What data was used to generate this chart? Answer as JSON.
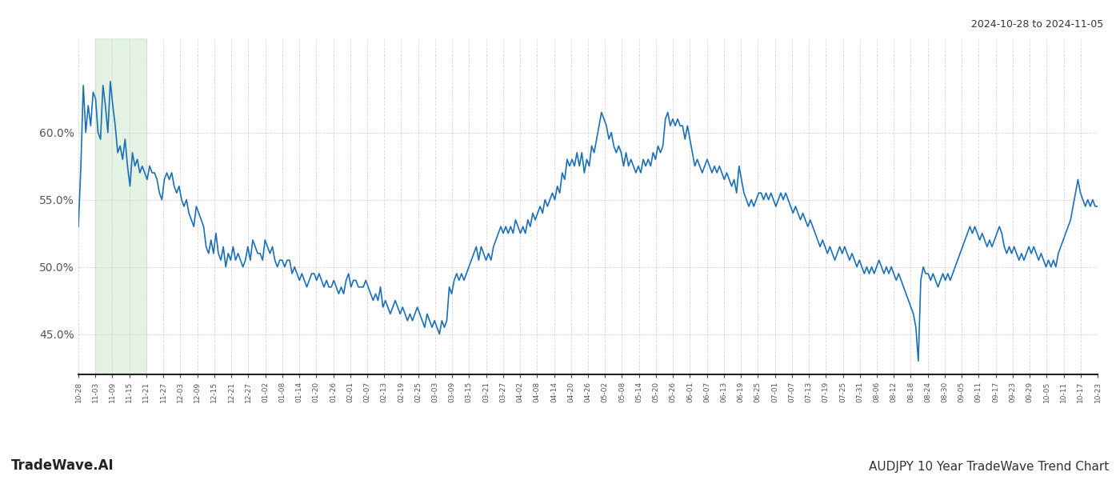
{
  "title_right": "2024-10-28 to 2024-11-05",
  "footer_left": "TradeWave.AI",
  "footer_right": "AUDJPY 10 Year TradeWave Trend Chart",
  "line_color": "#1a6fba",
  "line_width": 1.2,
  "background_color": "#ffffff",
  "grid_color": "#cccccc",
  "highlight_color": "#c8e6c9",
  "highlight_alpha": 0.5,
  "ylim": [
    42.0,
    67.0
  ],
  "yticks": [
    45.0,
    50.0,
    55.0,
    60.0
  ],
  "ytick_labels": [
    "45.0%",
    "50.0%",
    "55.0%",
    "60.0%"
  ],
  "xtick_labels": [
    "10-28",
    "11-03",
    "11-09",
    "11-15",
    "11-21",
    "11-27",
    "12-03",
    "12-09",
    "12-15",
    "12-21",
    "12-27",
    "01-02",
    "01-08",
    "01-14",
    "01-20",
    "01-26",
    "02-01",
    "02-07",
    "02-13",
    "02-19",
    "02-25",
    "03-03",
    "03-09",
    "03-15",
    "03-21",
    "03-27",
    "04-02",
    "04-08",
    "04-14",
    "04-20",
    "04-26",
    "05-02",
    "05-08",
    "05-14",
    "05-20",
    "05-26",
    "06-01",
    "06-07",
    "06-13",
    "06-19",
    "06-25",
    "07-01",
    "07-07",
    "07-13",
    "07-19",
    "07-25",
    "07-31",
    "08-06",
    "08-12",
    "08-18",
    "08-24",
    "08-30",
    "09-05",
    "09-11",
    "09-17",
    "09-23",
    "09-29",
    "10-05",
    "10-11",
    "10-17",
    "10-23"
  ],
  "highlight_xstart": 1,
  "highlight_xend": 4,
  "values": [
    53.0,
    57.5,
    63.5,
    60.0,
    62.0,
    60.5,
    63.0,
    62.5,
    60.0,
    59.5,
    63.5,
    62.0,
    60.0,
    63.8,
    62.0,
    60.5,
    58.5,
    59.0,
    58.0,
    59.5,
    57.5,
    56.0,
    58.5,
    57.5,
    58.0,
    57.0,
    57.5,
    57.0,
    56.5,
    57.5,
    57.0,
    57.0,
    56.5,
    55.5,
    55.0,
    56.5,
    57.0,
    56.5,
    57.0,
    56.0,
    55.5,
    56.0,
    55.0,
    54.5,
    55.0,
    54.0,
    53.5,
    53.0,
    54.5,
    54.0,
    53.5,
    53.0,
    51.5,
    51.0,
    52.0,
    51.0,
    52.5,
    51.0,
    50.5,
    51.5,
    50.0,
    51.0,
    50.5,
    51.5,
    50.5,
    51.0,
    50.5,
    50.0,
    50.5,
    51.5,
    50.5,
    52.0,
    51.5,
    51.0,
    51.0,
    50.5,
    52.0,
    51.5,
    51.0,
    51.5,
    50.5,
    50.0,
    50.5,
    50.5,
    50.0,
    50.5,
    50.5,
    49.5,
    50.0,
    49.5,
    49.0,
    49.5,
    49.0,
    48.5,
    49.0,
    49.5,
    49.5,
    49.0,
    49.5,
    49.0,
    48.5,
    49.0,
    48.5,
    48.5,
    49.0,
    48.5,
    48.0,
    48.5,
    48.0,
    49.0,
    49.5,
    48.5,
    49.0,
    49.0,
    48.5,
    48.5,
    48.5,
    49.0,
    48.5,
    48.0,
    47.5,
    48.0,
    47.5,
    48.5,
    47.0,
    47.5,
    47.0,
    46.5,
    47.0,
    47.5,
    47.0,
    46.5,
    47.0,
    46.5,
    46.0,
    46.5,
    46.0,
    46.5,
    47.0,
    46.5,
    46.0,
    45.5,
    46.5,
    46.0,
    45.5,
    46.0,
    45.5,
    45.0,
    46.0,
    45.5,
    46.0,
    48.5,
    48.0,
    49.0,
    49.5,
    49.0,
    49.5,
    49.0,
    49.5,
    50.0,
    50.5,
    51.0,
    51.5,
    50.5,
    51.5,
    51.0,
    50.5,
    51.0,
    50.5,
    51.5,
    52.0,
    52.5,
    53.0,
    52.5,
    53.0,
    52.5,
    53.0,
    52.5,
    53.5,
    53.0,
    52.5,
    53.0,
    52.5,
    53.5,
    53.0,
    54.0,
    53.5,
    54.0,
    54.5,
    54.0,
    55.0,
    54.5,
    55.0,
    55.5,
    55.0,
    56.0,
    55.5,
    57.0,
    56.5,
    58.0,
    57.5,
    58.0,
    57.5,
    58.5,
    57.5,
    58.5,
    57.0,
    58.0,
    57.5,
    59.0,
    58.5,
    59.5,
    60.5,
    61.5,
    61.0,
    60.5,
    59.5,
    60.0,
    59.0,
    58.5,
    59.0,
    58.5,
    57.5,
    58.5,
    57.5,
    58.0,
    57.5,
    57.0,
    57.5,
    57.0,
    58.0,
    57.5,
    58.0,
    57.5,
    58.5,
    58.0,
    59.0,
    58.5,
    59.0,
    61.0,
    61.5,
    60.5,
    61.0,
    60.5,
    61.0,
    60.5,
    60.5,
    59.5,
    60.5,
    59.5,
    58.5,
    57.5,
    58.0,
    57.5,
    57.0,
    57.5,
    58.0,
    57.5,
    57.0,
    57.5,
    57.0,
    57.5,
    57.0,
    56.5,
    57.0,
    56.5,
    56.0,
    56.5,
    55.5,
    57.5,
    56.5,
    55.5,
    55.0,
    54.5,
    55.0,
    54.5,
    55.0,
    55.5,
    55.5,
    55.0,
    55.5,
    55.0,
    55.5,
    55.0,
    54.5,
    55.0,
    55.5,
    55.0,
    55.5,
    55.0,
    54.5,
    54.0,
    54.5,
    54.0,
    53.5,
    54.0,
    53.5,
    53.0,
    53.5,
    53.0,
    52.5,
    52.0,
    51.5,
    52.0,
    51.5,
    51.0,
    51.5,
    51.0,
    50.5,
    51.0,
    51.5,
    51.0,
    51.5,
    51.0,
    50.5,
    51.0,
    50.5,
    50.0,
    50.5,
    50.0,
    49.5,
    50.0,
    49.5,
    50.0,
    49.5,
    50.0,
    50.5,
    50.0,
    49.5,
    50.0,
    49.5,
    50.0,
    49.5,
    49.0,
    49.5,
    49.0,
    48.5,
    48.0,
    47.5,
    47.0,
    46.5,
    45.5,
    43.0,
    49.0,
    50.0,
    49.5,
    49.5,
    49.0,
    49.5,
    49.0,
    48.5,
    49.0,
    49.5,
    49.0,
    49.5,
    49.0,
    49.5,
    50.0,
    50.5,
    51.0,
    51.5,
    52.0,
    52.5,
    53.0,
    52.5,
    53.0,
    52.5,
    52.0,
    52.5,
    52.0,
    51.5,
    52.0,
    51.5,
    52.0,
    52.5,
    53.0,
    52.5,
    51.5,
    51.0,
    51.5,
    51.0,
    51.5,
    51.0,
    50.5,
    51.0,
    50.5,
    51.0,
    51.5,
    51.0,
    51.5,
    51.0,
    50.5,
    51.0,
    50.5,
    50.0,
    50.5,
    50.0,
    50.5,
    50.0,
    51.0,
    51.5,
    52.0,
    52.5,
    53.0,
    53.5,
    54.5,
    55.5,
    56.5,
    55.5,
    55.0,
    54.5,
    55.0,
    54.5,
    55.0,
    54.5,
    54.5
  ]
}
